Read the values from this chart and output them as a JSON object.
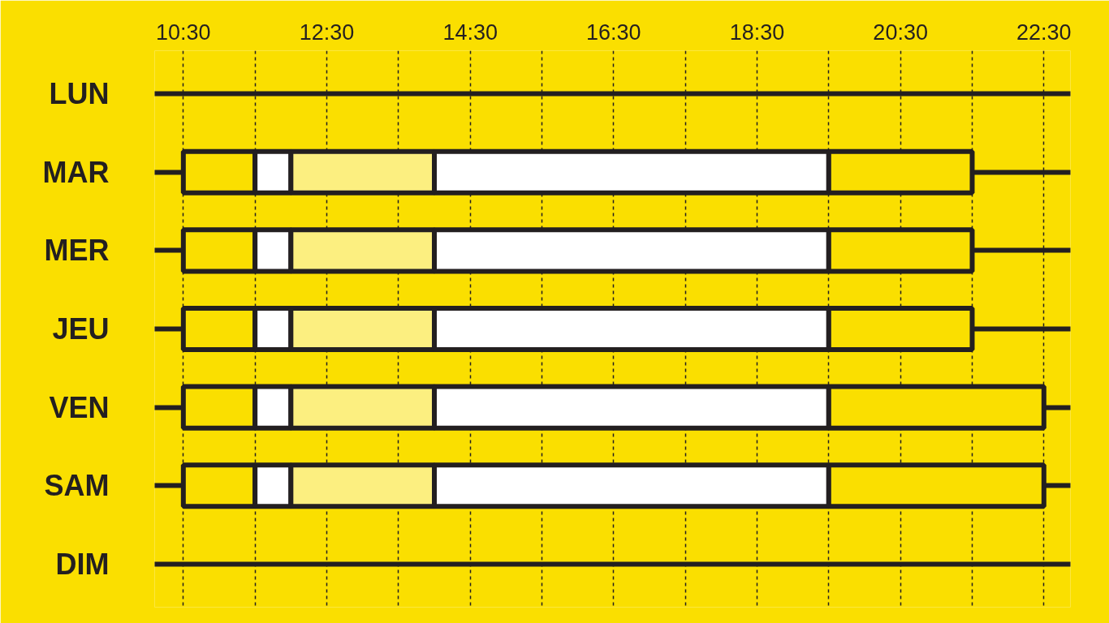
{
  "chart_data": {
    "type": "bar",
    "orientation": "horizontal",
    "categories": [
      "LUN",
      "MAR",
      "MER",
      "JEU",
      "VEN",
      "SAM",
      "DIM"
    ],
    "series": [
      {
        "color": "#fadf00",
        "base": [
          null,
          10.5,
          10.5,
          10.5,
          10.5,
          10.5,
          null
        ],
        "values": [
          null,
          1,
          1,
          1,
          1,
          1,
          null
        ]
      },
      {
        "color": "#ffffff",
        "base": [
          null,
          11.5,
          11.5,
          11.5,
          11.5,
          11.5,
          null
        ],
        "values": [
          null,
          0.5,
          0.5,
          0.5,
          0.5,
          0.5,
          null
        ]
      },
      {
        "color": "#fcef80",
        "base": [
          null,
          12,
          12,
          12,
          12,
          12,
          null
        ],
        "values": [
          null,
          2,
          2,
          2,
          2,
          2,
          null
        ]
      },
      {
        "color": "#ffffff",
        "base": [
          null,
          14,
          14,
          14,
          14,
          14,
          null
        ],
        "values": [
          null,
          5.5,
          5.5,
          5.5,
          5.5,
          5.5,
          null
        ]
      },
      {
        "color": "#fadf00",
        "base": [
          null,
          19.5,
          19.5,
          19.5,
          19.5,
          19.5,
          null
        ],
        "values": [
          null,
          2,
          2,
          2,
          3,
          3,
          null
        ]
      }
    ],
    "xlim": [
      10.1,
      22.87
    ],
    "xticks": [
      {
        "value": 10.5,
        "label": "10:30"
      },
      {
        "value": 11.5,
        "label": null
      },
      {
        "value": 12.5,
        "label": "12:30"
      },
      {
        "value": 13.5,
        "label": null
      },
      {
        "value": 14.5,
        "label": "14:30"
      },
      {
        "value": 15.5,
        "label": null
      },
      {
        "value": 16.5,
        "label": "16:30"
      },
      {
        "value": 17.5,
        "label": null
      },
      {
        "value": 18.5,
        "label": "18:30"
      },
      {
        "value": 19.5,
        "label": null
      },
      {
        "value": 20.5,
        "label": "20:30"
      },
      {
        "value": 21.5,
        "label": null
      },
      {
        "value": 22.5,
        "label": "22:30"
      }
    ],
    "grid": true
  }
}
